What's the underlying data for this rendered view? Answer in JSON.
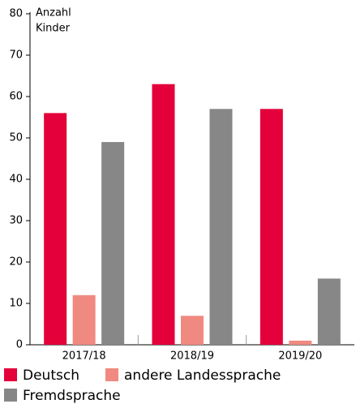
{
  "chart_data": {
    "type": "bar",
    "y_label": [
      "Anzahl",
      "Kinder"
    ],
    "categories": [
      "2017/18",
      "2018/19",
      "2019/20"
    ],
    "series": [
      {
        "name": "Deutsch",
        "color": "#e4003a",
        "values": [
          56,
          63,
          57
        ]
      },
      {
        "name": "andere Landessprache",
        "color": "#f08a80",
        "values": [
          12,
          7,
          1
        ]
      },
      {
        "name": "Fremdsprache",
        "color": "#878787",
        "values": [
          49,
          57,
          16
        ]
      }
    ],
    "ylim": [
      0,
      80
    ],
    "yticks": [
      0,
      10,
      20,
      30,
      40,
      50,
      60,
      70,
      80
    ],
    "grid": false
  }
}
